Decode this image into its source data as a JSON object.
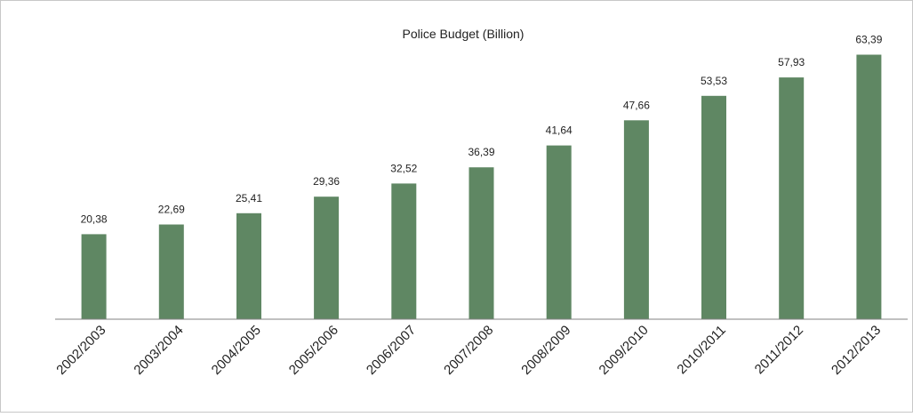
{
  "chart_data": {
    "type": "bar",
    "title": "Police Budget (Billion)",
    "xlabel": "",
    "ylabel": "",
    "ylim": [
      0,
      70
    ],
    "grid": false,
    "legend": "none",
    "categories": [
      "2002/2003",
      "2003/2004",
      "2004/2005",
      "2005/2006",
      "2006/2007",
      "2007/2008",
      "2008/2009",
      "2009/2010",
      "2010/2011",
      "2011/2012",
      "2012/2013"
    ],
    "values": [
      20.38,
      22.69,
      25.41,
      29.36,
      32.52,
      36.39,
      41.64,
      47.66,
      53.53,
      57.93,
      63.39
    ],
    "data_labels": [
      "20,38",
      "22,69",
      "25,41",
      "29,36",
      "32,52",
      "36,39",
      "41,64",
      "47,66",
      "53,53",
      "57,93",
      "63,39"
    ],
    "colors": {
      "bar": "#5f8763",
      "axis": "#808080",
      "frame": "#c8c8c8"
    }
  }
}
